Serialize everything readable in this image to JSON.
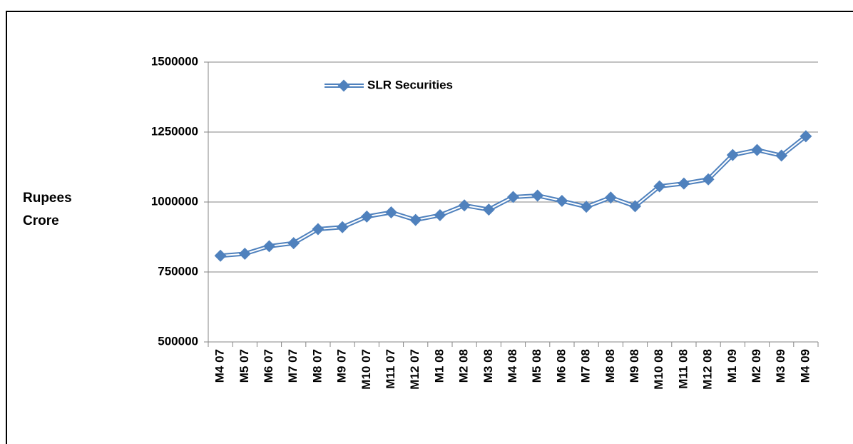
{
  "chart_data": {
    "type": "line",
    "y_label": "Rupees Crore",
    "categories": [
      "M4 07",
      "M5 07",
      "M6 07",
      "M7 07",
      "M8 07",
      "M9 07",
      "M10 07",
      "M11 07",
      "M12 07",
      "M1 08",
      "M2 08",
      "M3 08",
      "M4 08",
      "M5 08",
      "M6 08",
      "M7 08",
      "M8 08",
      "M9 08",
      "M10 08",
      "M11 08",
      "M12 08",
      "M1 09",
      "M2 09",
      "M3 09",
      "M4 09"
    ],
    "series": [
      {
        "name": "SLR Securities",
        "color": "#4f81bd",
        "values": [
          808000,
          815000,
          842000,
          853000,
          903000,
          910000,
          948000,
          963000,
          936000,
          953000,
          988000,
          973000,
          1018000,
          1023000,
          1004000,
          983000,
          1016000,
          985000,
          1056000,
          1066000,
          1081000,
          1168000,
          1186000,
          1166000,
          1235000
        ]
      }
    ],
    "ylim": [
      500000,
      1500000
    ],
    "yticks": [
      500000,
      750000,
      1000000,
      1250000,
      1500000
    ],
    "grid": true
  }
}
